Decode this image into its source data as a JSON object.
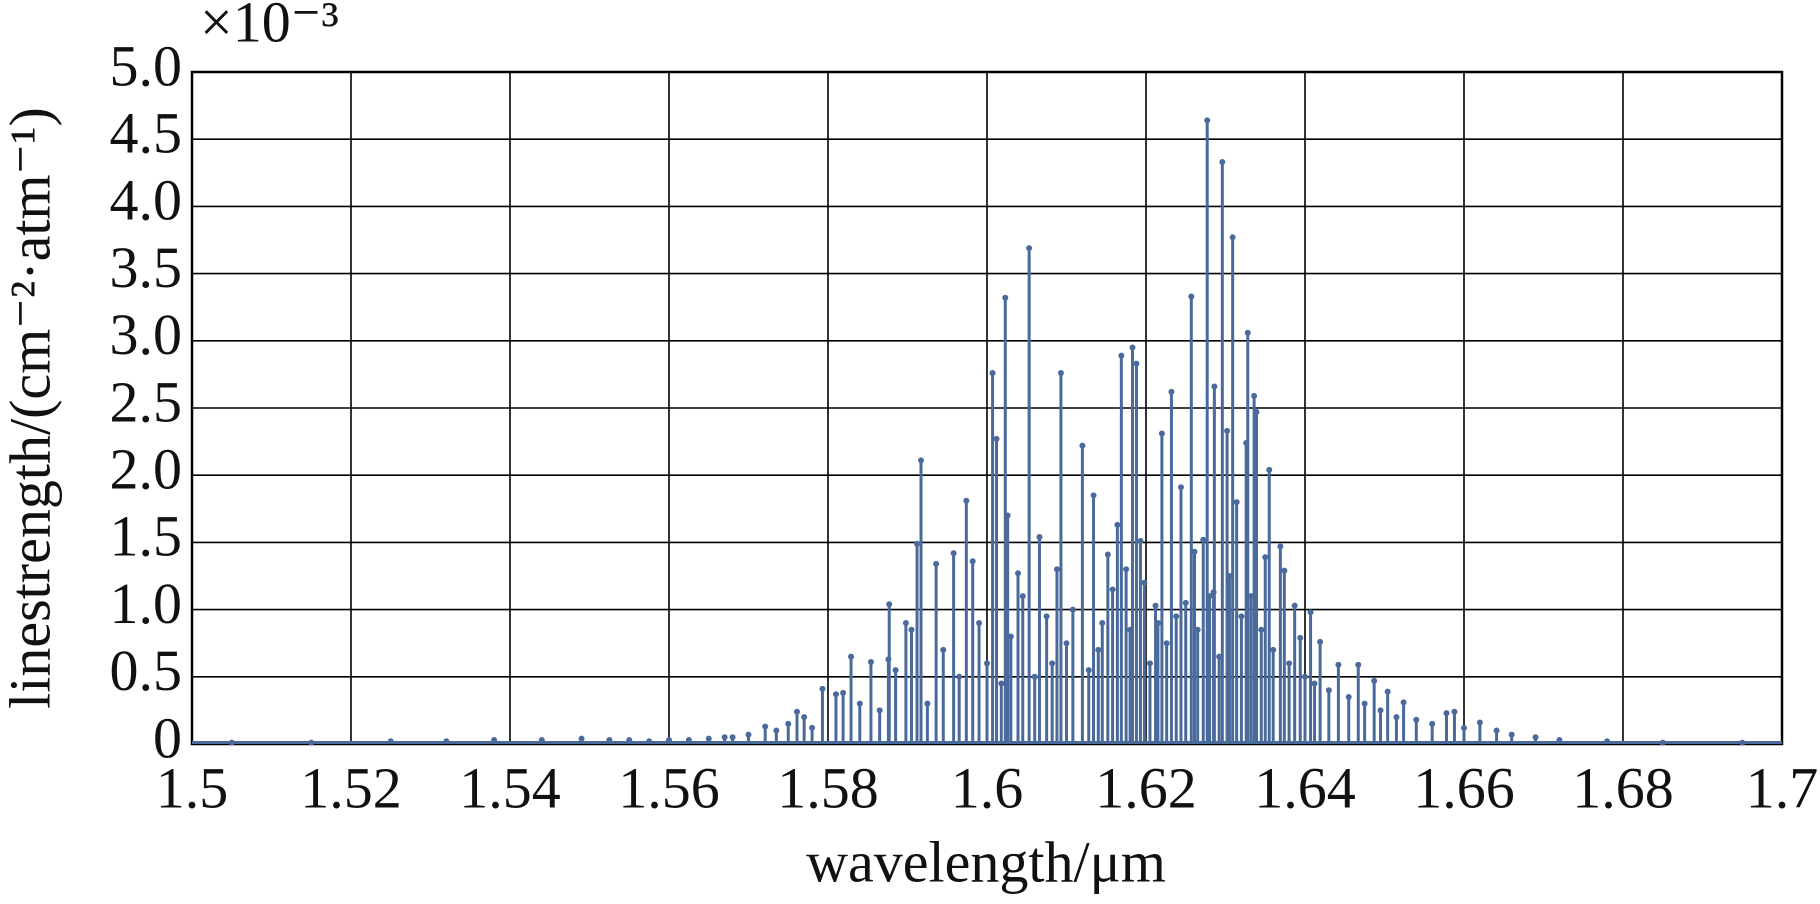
{
  "chart_data": {
    "type": "stem",
    "annotation": "×10⁻³",
    "xlabel": "wavelength/μm",
    "ylabel": "linestrength/(cm⁻²·atm⁻¹)",
    "color": "#4a6a9c",
    "grid": true,
    "xlim": [
      1.5,
      1.7
    ],
    "ylim": [
      0,
      5
    ],
    "xticks": [
      1.5,
      1.52,
      1.54,
      1.56,
      1.58,
      1.6,
      1.62,
      1.64,
      1.66,
      1.68,
      1.7
    ],
    "yticks": [
      0,
      0.5,
      {
        "value": 1,
        "label": "1.0"
      },
      1.5,
      {
        "value": 2,
        "label": "2.0"
      },
      2.5,
      {
        "value": 3,
        "label": "3.0"
      },
      3.5,
      {
        "value": 4,
        "label": "4.0"
      },
      4.5,
      {
        "value": 5,
        "label": "5.0"
      }
    ],
    "x": [
      1.6277,
      1.6296,
      1.6309,
      1.6053,
      1.6023,
      1.6257,
      1.6328,
      1.6183,
      1.6169,
      1.6188,
      1.6007,
      1.6093,
      1.6286,
      1.6232,
      1.6336,
      1.6302,
      1.622,
      1.6012,
      1.6339,
      1.612,
      1.6326,
      1.5917,
      1.6355,
      1.5974,
      1.6134,
      1.6026,
      1.6314,
      1.6244,
      1.6164,
      1.6193,
      1.6066,
      1.5912,
      1.6369,
      1.6261,
      1.5958,
      1.6272,
      1.5982,
      1.5936,
      1.635,
      1.6088,
      1.6374,
      1.5877,
      1.6387,
      1.6407,
      1.6212,
      1.6152,
      1.6039,
      1.5898,
      1.6285,
      1.6394,
      1.6419,
      1.5829,
      1.5854,
      1.5876,
      1.6442,
      1.6467,
      1.6487,
      1.5793,
      1.581,
      1.5819,
      1.6504,
      1.6524,
      1.6578,
      1.6588,
      1.5761,
      1.5721,
      1.662,
      1.6641,
      1.5885,
      1.5905,
      1.5925,
      1.5945,
      1.5965,
      1.599,
      1.6,
      1.6018,
      1.603,
      1.6045,
      1.606,
      1.6075,
      1.6082,
      1.61,
      1.6108,
      1.6128,
      1.614,
      1.6145,
      1.6158,
      1.6175,
      1.618,
      1.6198,
      1.6205,
      1.6215,
      1.6226,
      1.6238,
      1.625,
      1.6265,
      1.628,
      1.6292,
      1.6305,
      1.632,
      1.6332,
      1.6345,
      1.636,
      1.638,
      1.64,
      1.6412,
      1.643,
      1.6455,
      1.6475,
      1.6495,
      1.6515,
      1.654,
      1.656,
      1.66,
      1.666,
      1.669,
      1.672,
      1.678,
      1.685,
      1.695,
      1.505,
      1.515,
      1.525,
      1.532,
      1.538,
      1.544,
      1.549,
      1.5525,
      1.555,
      1.5575,
      1.56,
      1.5625,
      1.565,
      1.567,
      1.568,
      1.57,
      1.5735,
      1.575,
      1.577,
      1.578,
      1.584,
      1.5865
    ],
    "values": [
      4.64,
      4.33,
      3.77,
      3.69,
      3.32,
      3.33,
      3.06,
      2.95,
      2.89,
      2.83,
      2.76,
      2.76,
      2.66,
      2.62,
      2.59,
      2.33,
      2.31,
      2.27,
      2.47,
      2.22,
      2.24,
      2.11,
      2.04,
      1.81,
      1.85,
      1.7,
      1.8,
      1.91,
      1.63,
      1.51,
      1.54,
      1.49,
      1.47,
      1.43,
      1.42,
      1.52,
      1.36,
      1.34,
      1.39,
      1.3,
      1.29,
      1.04,
      1.03,
      0.98,
      1.03,
      1.41,
      1.27,
      0.9,
      1.13,
      0.79,
      0.76,
      0.65,
      0.61,
      0.63,
      0.59,
      0.59,
      0.47,
      0.41,
      0.37,
      0.38,
      0.39,
      0.31,
      0.23,
      0.24,
      0.24,
      0.13,
      0.16,
      0.1,
      0.55,
      0.85,
      0.3,
      0.7,
      0.5,
      0.9,
      0.6,
      0.45,
      0.8,
      1.1,
      0.5,
      0.95,
      0.6,
      0.75,
      1.0,
      0.55,
      0.7,
      0.9,
      1.15,
      1.3,
      0.85,
      1.2,
      0.6,
      0.9,
      0.75,
      0.95,
      1.05,
      0.85,
      1.1,
      0.65,
      1.25,
      0.95,
      1.1,
      0.85,
      0.7,
      0.6,
      0.5,
      0.45,
      0.4,
      0.35,
      0.3,
      0.25,
      0.2,
      0.18,
      0.15,
      0.12,
      0.07,
      0.05,
      0.03,
      0.02,
      0.01,
      0.01,
      0.01,
      0.01,
      0.02,
      0.02,
      0.03,
      0.03,
      0.04,
      0.03,
      0.03,
      0.02,
      0.03,
      0.03,
      0.04,
      0.05,
      0.05,
      0.07,
      0.1,
      0.15,
      0.2,
      0.12,
      0.3,
      0.25
    ]
  }
}
